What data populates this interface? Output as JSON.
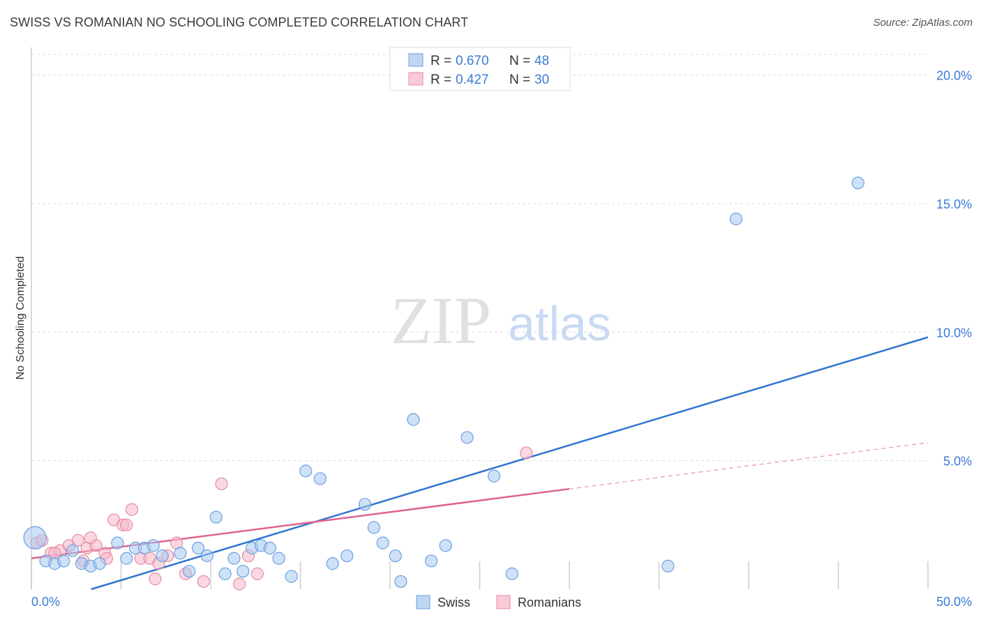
{
  "header": {
    "title": "SWISS VS ROMANIAN NO SCHOOLING COMPLETED CORRELATION CHART",
    "source": "Source: ZipAtlas.com"
  },
  "watermark": {
    "zip": "ZIP",
    "atlas": "atlas"
  },
  "colors": {
    "swiss": "#a8c8f0",
    "swiss_stroke": "#6a9fe0",
    "swiss_line": "#2f74d0",
    "romanians": "#f5b8c8",
    "romanians_stroke": "#e58aa4",
    "romanians_line": "#e0628e",
    "tick_text": "#3a7bd5",
    "grid": "#dcdcdc"
  },
  "legend_stats": [
    {
      "r_label": "R = ",
      "r_value": "0.670",
      "n_label": "N = ",
      "n_value": "48"
    },
    {
      "r_label": "R = ",
      "r_value": "0.427",
      "n_label": "N = ",
      "n_value": "30"
    }
  ],
  "chart_data": {
    "type": "scatter",
    "title": "SWISS VS ROMANIAN NO SCHOOLING COMPLETED CORRELATION CHART",
    "xlabel": "",
    "ylabel": "No Schooling Completed",
    "xlim": [
      0,
      50
    ],
    "ylim": [
      0,
      20.8
    ],
    "x_tick_labels": [
      "0.0%",
      "50.0%"
    ],
    "y_ticks": [
      5,
      10,
      15,
      20
    ],
    "y_tick_labels": [
      "5.0%",
      "10.0%",
      "15.0%",
      "20.0%"
    ],
    "grid": true,
    "legend_position": "bottom-center",
    "series": [
      {
        "name": "Swiss",
        "r": 0.67,
        "n": 48,
        "points": [
          [
            0.2,
            2.0,
            1
          ],
          [
            0.8,
            1.1,
            0
          ],
          [
            1.3,
            1.0,
            0
          ],
          [
            1.8,
            1.1,
            0
          ],
          [
            2.3,
            1.5,
            0
          ],
          [
            2.8,
            1.0,
            0
          ],
          [
            3.3,
            0.9,
            0
          ],
          [
            3.8,
            1.0,
            0
          ],
          [
            4.8,
            1.8,
            0
          ],
          [
            5.3,
            1.2,
            0
          ],
          [
            5.8,
            1.6,
            0
          ],
          [
            6.3,
            1.6,
            0
          ],
          [
            6.8,
            1.7,
            0
          ],
          [
            7.3,
            1.3,
            0
          ],
          [
            8.3,
            1.4,
            0
          ],
          [
            8.8,
            0.7,
            0
          ],
          [
            9.3,
            1.6,
            0
          ],
          [
            9.8,
            1.3,
            0
          ],
          [
            10.3,
            2.8,
            0
          ],
          [
            10.8,
            0.6,
            0
          ],
          [
            11.3,
            1.2,
            0
          ],
          [
            11.8,
            0.7,
            0
          ],
          [
            12.3,
            1.6,
            0
          ],
          [
            12.8,
            1.7,
            0
          ],
          [
            13.3,
            1.6,
            0
          ],
          [
            13.8,
            1.2,
            0
          ],
          [
            14.5,
            0.5,
            0
          ],
          [
            15.3,
            4.6,
            0
          ],
          [
            16.1,
            4.3,
            0
          ],
          [
            16.8,
            1.0,
            0
          ],
          [
            17.6,
            1.3,
            0
          ],
          [
            18.6,
            3.3,
            0
          ],
          [
            19.1,
            2.4,
            0
          ],
          [
            19.6,
            1.8,
            0
          ],
          [
            20.3,
            1.3,
            0
          ],
          [
            20.6,
            0.3,
            0
          ],
          [
            21.3,
            6.6,
            0
          ],
          [
            22.3,
            1.1,
            0
          ],
          [
            23.1,
            1.7,
            0
          ],
          [
            24.3,
            5.9,
            0
          ],
          [
            25.8,
            4.4,
            0
          ],
          [
            26.8,
            0.6,
            0
          ],
          [
            35.5,
            0.9,
            0
          ],
          [
            39.3,
            14.4,
            0
          ],
          [
            46.1,
            15.8,
            0
          ]
        ],
        "trend": {
          "x": [
            0,
            50
          ],
          "y": [
            -0.7,
            9.8
          ]
        }
      },
      {
        "name": "Romanians",
        "r": 0.427,
        "n": 30,
        "points": [
          [
            0.3,
            1.8,
            0
          ],
          [
            0.6,
            1.9,
            0
          ],
          [
            1.1,
            1.4,
            0
          ],
          [
            1.6,
            1.5,
            0
          ],
          [
            2.1,
            1.7,
            0
          ],
          [
            2.6,
            1.9,
            0
          ],
          [
            3.1,
            1.6,
            0
          ],
          [
            3.6,
            1.7,
            0
          ],
          [
            4.1,
            1.4,
            0
          ],
          [
            4.6,
            2.7,
            0
          ],
          [
            5.1,
            2.5,
            0
          ],
          [
            5.6,
            3.1,
            0
          ],
          [
            6.1,
            1.2,
            0
          ],
          [
            6.6,
            1.2,
            0
          ],
          [
            7.1,
            1.0,
            0
          ],
          [
            7.6,
            1.3,
            0
          ],
          [
            8.1,
            1.8,
            0
          ],
          [
            8.6,
            0.6,
            0
          ],
          [
            9.6,
            0.3,
            0
          ],
          [
            10.6,
            4.1,
            0
          ],
          [
            11.6,
            0.2,
            0
          ],
          [
            12.1,
            1.3,
            0
          ],
          [
            12.6,
            0.6,
            0
          ],
          [
            27.6,
            5.3,
            0
          ],
          [
            3.3,
            2.0,
            0
          ],
          [
            2.9,
            1.1,
            0
          ],
          [
            5.3,
            2.5,
            0
          ],
          [
            6.9,
            0.4,
            0
          ],
          [
            1.3,
            1.4,
            0
          ],
          [
            4.2,
            1.2,
            0
          ]
        ],
        "trend": {
          "x": [
            0,
            30
          ],
          "y": [
            1.2,
            3.9
          ]
        },
        "trend_extension": {
          "x": [
            30,
            50
          ],
          "y": [
            3.9,
            5.7
          ]
        }
      }
    ]
  }
}
